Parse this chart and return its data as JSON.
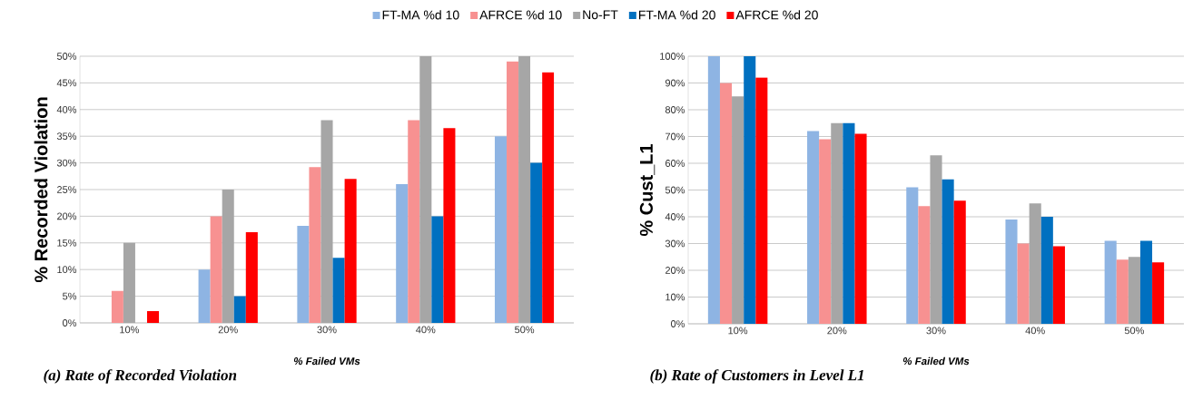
{
  "chart_data": [
    {
      "type": "bar",
      "title": "(a) Rate of Recorded Violation",
      "xlabel": "% Failed VMs",
      "ylabel": "% Recorded Violation",
      "categories": [
        "10%",
        "20%",
        "30%",
        "40%",
        "50%"
      ],
      "series": [
        {
          "name": "FT-MA %d 10",
          "color": "#8eb4e3",
          "values": [
            0,
            10,
            18.2,
            26,
            35
          ]
        },
        {
          "name": "AFRCE %d 10",
          "color": "#f79191",
          "values": [
            6,
            20,
            29.2,
            38,
            49
          ]
        },
        {
          "name": "No-FT",
          "color": "#a6a6a6",
          "values": [
            15,
            25,
            38,
            50,
            50
          ]
        },
        {
          "name": "FT-MA %d 20",
          "color": "#0070c0",
          "values": [
            0,
            5,
            12.2,
            20,
            30
          ]
        },
        {
          "name": "AFRCE %d 20",
          "color": "#ff0000",
          "values": [
            2.2,
            17,
            27,
            36.5,
            47
          ]
        }
      ],
      "ylim": [
        0,
        50
      ],
      "yticks": [
        {
          "value": 0,
          "label": "0%"
        },
        {
          "value": 5,
          "label": "5%"
        },
        {
          "value": 10,
          "label": "10%"
        },
        {
          "value": 15,
          "label": "15%"
        },
        {
          "value": 20,
          "label": "20%"
        },
        {
          "value": 25,
          "label": "25%"
        },
        {
          "value": 30,
          "label": "30%"
        },
        {
          "value": 35,
          "label": "35%"
        },
        {
          "value": 40,
          "label": "40%"
        },
        {
          "value": 45,
          "label": "45%"
        },
        {
          "value": 50,
          "label": "50%"
        }
      ],
      "grid": "y",
      "legend": "top"
    },
    {
      "type": "bar",
      "title": "(b) Rate of Customers in Level L1",
      "xlabel": "% Failed VMs",
      "ylabel": "% Cust_L1",
      "categories": [
        "10%",
        "20%",
        "30%",
        "40%",
        "50%"
      ],
      "series": [
        {
          "color": "#8eb4e3",
          "values": [
            100,
            72,
            51,
            39,
            31
          ]
        },
        {
          "color": "#f79191",
          "values": [
            90,
            69,
            44,
            30,
            24
          ]
        },
        {
          "color": "#a6a6a6",
          "values": [
            85,
            75,
            63,
            45,
            25
          ]
        },
        {
          "color": "#0070c0",
          "values": [
            100,
            75,
            54,
            40,
            31
          ]
        },
        {
          "color": "#ff0000",
          "values": [
            92,
            71,
            46,
            29,
            23
          ]
        }
      ],
      "ylim": [
        0,
        100
      ],
      "yticks": [
        {
          "value": 0,
          "label": "0%"
        },
        {
          "value": 10,
          "label": "10%"
        },
        {
          "value": 20,
          "label": "20%"
        },
        {
          "value": 30,
          "label": "30%"
        },
        {
          "value": 40,
          "label": "40%"
        },
        {
          "value": 50,
          "label": "50%"
        },
        {
          "value": 60,
          "label": "60%"
        },
        {
          "value": 70,
          "label": "70%"
        },
        {
          "value": 80,
          "label": "80%"
        },
        {
          "value": 90,
          "label": "90%"
        },
        {
          "value": 100,
          "label": "100%"
        }
      ],
      "grid": "y"
    }
  ]
}
